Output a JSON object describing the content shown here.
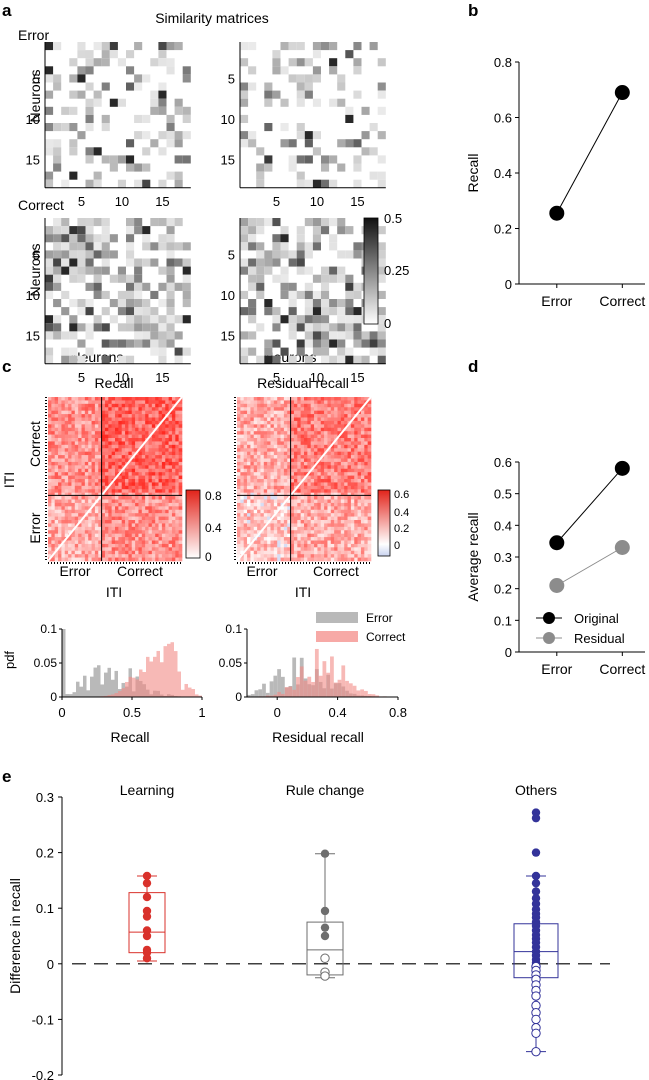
{
  "panels": {
    "a": "a",
    "b": "b",
    "c": "c",
    "d": "d",
    "e": "e"
  },
  "panel_a": {
    "title": "Similarity matrices",
    "row_labels": [
      "Error",
      "Correct"
    ],
    "ylabel": "Neurons",
    "xlabel": "Neurons",
    "ticks": [
      "5",
      "10",
      "15"
    ],
    "colorbar_ticks": [
      "0.5",
      "0.25",
      "0"
    ]
  },
  "panel_c": {
    "titles": [
      "Recall",
      "Residual recall"
    ],
    "ylabel": "ITI",
    "xlabel": "ITI",
    "row_labels": [
      "Correct",
      "Error"
    ],
    "col_labels": [
      "Error",
      "Correct"
    ],
    "colorbar1_ticks": [
      "0.8",
      "0.4",
      "0"
    ],
    "colorbar2_ticks": [
      "0.6",
      "0.4",
      "0.2",
      "0"
    ],
    "hist_ylabel": "pdf",
    "hist1_xlabel": "Recall",
    "hist2_xlabel": "Residual recall",
    "hist1_yticks": [
      "0.1",
      "0.05",
      "0"
    ],
    "hist2_yticks": [
      "0.1",
      "0.05",
      "0"
    ],
    "hist1_xticks": [
      "0",
      "0.5",
      "1"
    ],
    "hist2_xticks": [
      "0",
      "0.4",
      "0.8"
    ],
    "legend": [
      "Error",
      "Correct"
    ]
  },
  "chart_data": [
    {
      "type": "line",
      "panel": "b",
      "categories": [
        "Error",
        "Correct"
      ],
      "series": [
        {
          "values": [
            0.255,
            0.69
          ],
          "color": "#000000"
        }
      ],
      "xlabel": "",
      "ylabel": "Recall",
      "ylim": [
        0,
        0.8
      ],
      "yticks": [
        "0",
        "0.2",
        "0.4",
        "0.6",
        "0.8"
      ]
    },
    {
      "type": "line",
      "panel": "d",
      "categories": [
        "Error",
        "Correct"
      ],
      "series": [
        {
          "name": "Original",
          "values": [
            0.345,
            0.58
          ],
          "color": "#000000"
        },
        {
          "name": "Residual",
          "values": [
            0.21,
            0.33
          ],
          "color": "#8c8c8c"
        }
      ],
      "xlabel": "",
      "ylabel": "Average recall",
      "ylim": [
        0,
        0.6
      ],
      "yticks": [
        "0",
        "0.1",
        "0.2",
        "0.3",
        "0.4",
        "0.5",
        "0.6"
      ],
      "legend_placement": "bottom"
    },
    {
      "type": "box",
      "panel": "e",
      "categories": [
        "Learning",
        "Rule change",
        "Others"
      ],
      "ylabel": "Difference in recall",
      "ylim": [
        -0.2,
        0.3
      ],
      "yticks": [
        "0.3",
        "0.2",
        "0.1",
        "0",
        "-0.1",
        "-0.2"
      ],
      "reference_line": 0,
      "groups": [
        {
          "name": "Learning",
          "color": "#d9312b",
          "box": {
            "q1": 0.02,
            "median": 0.057,
            "q3": 0.128,
            "whisker_low": 0.005,
            "whisker_high": 0.158
          },
          "filled_points": [
            0.158,
            0.145,
            0.12,
            0.095,
            0.085,
            0.06,
            0.05,
            0.025,
            0.02,
            0.01
          ],
          "open_points": []
        },
        {
          "name": "Rule change",
          "color": "#6e6e6e",
          "box": {
            "q1": -0.02,
            "median": 0.025,
            "q3": 0.075,
            "whisker_low": -0.025,
            "whisker_high": 0.198
          },
          "filled_points": [
            0.198,
            0.095,
            0.065,
            0.05
          ],
          "open_points": [
            0.01,
            -0.015,
            -0.022
          ]
        },
        {
          "name": "Others",
          "color": "#33339a",
          "box": {
            "q1": -0.025,
            "median": 0.022,
            "q3": 0.072,
            "whisker_low": -0.158,
            "whisker_high": 0.158
          },
          "filled_points": [
            0.272,
            0.262,
            0.2,
            0.158,
            0.145,
            0.13,
            0.118,
            0.108,
            0.098,
            0.09,
            0.083,
            0.075,
            0.068,
            0.06,
            0.052,
            0.045,
            0.038,
            0.03,
            0.022,
            0.015,
            0.008,
            0.002
          ],
          "open_points": [
            -0.005,
            -0.012,
            -0.02,
            -0.028,
            -0.038,
            -0.048,
            -0.058,
            -0.075,
            -0.088,
            -0.1,
            -0.115,
            -0.125,
            -0.158
          ]
        }
      ]
    }
  ]
}
